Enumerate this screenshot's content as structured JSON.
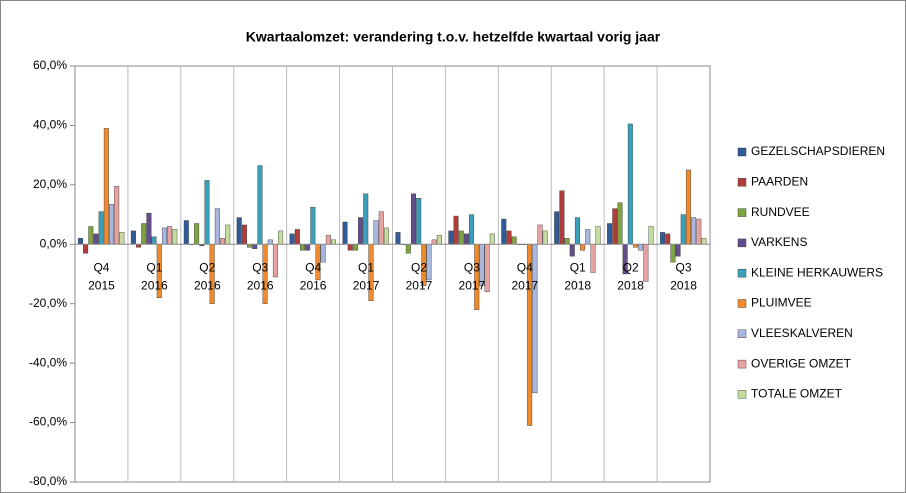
{
  "chart_data": {
    "type": "bar",
    "title": "Kwartaalomzet: verandering t.o.v. hetzelfde kwartaal vorig jaar",
    "categories": [
      [
        "Q4",
        "2015"
      ],
      [
        "Q1",
        "2016"
      ],
      [
        "Q2",
        "2016"
      ],
      [
        "Q3",
        "2016"
      ],
      [
        "Q4",
        "2016"
      ],
      [
        "Q1",
        "2017"
      ],
      [
        "Q2",
        "2017"
      ],
      [
        "Q3",
        "2017"
      ],
      [
        "Q4",
        "2017"
      ],
      [
        "Q1",
        "2018"
      ],
      [
        "Q2",
        "2018"
      ],
      [
        "Q3",
        "2018"
      ]
    ],
    "series": [
      {
        "name": "GEZELSCHAPSDIEREN",
        "color": "#2f5b96",
        "values": [
          2,
          4.5,
          8,
          9,
          3.5,
          7.5,
          4,
          4.5,
          8.5,
          11,
          7,
          4
        ]
      },
      {
        "name": "PAARDEN",
        "color": "#b23c3a",
        "values": [
          -3,
          -1,
          0,
          6.5,
          5,
          -2,
          0,
          9.5,
          4.5,
          18,
          12,
          3.5
        ]
      },
      {
        "name": "RUNDVEE",
        "color": "#7ea342",
        "values": [
          6,
          7,
          7,
          -1,
          -2,
          -2,
          -3,
          4.5,
          2.5,
          2,
          14,
          -6
        ]
      },
      {
        "name": "VARKENS",
        "color": "#634d8a",
        "values": [
          3.5,
          10.5,
          -0.5,
          -1.5,
          -2,
          9,
          17,
          3.5,
          0,
          -4,
          -10,
          -4
        ]
      },
      {
        "name": "KLEINE HERKAUWERS",
        "color": "#3aa0ba",
        "values": [
          11,
          2.5,
          21.5,
          26.5,
          12.5,
          17,
          15.5,
          10,
          0,
          9,
          40.5,
          10
        ]
      },
      {
        "name": "PLUIMVEE",
        "color": "#f08a2c",
        "values": [
          39,
          -18,
          -20,
          -20,
          -12,
          -19,
          -14,
          -22,
          -61,
          -2,
          -1,
          25
        ]
      },
      {
        "name": "VLEESKALVEREN",
        "color": "#a9b7de",
        "values": [
          13.5,
          5.5,
          12,
          1.5,
          -6,
          8,
          -12,
          -14,
          -50,
          5,
          -2,
          9
        ]
      },
      {
        "name": "OVERIGE OMZET",
        "color": "#e8a2a1",
        "values": [
          19.5,
          6,
          2,
          -11,
          3,
          11,
          1.5,
          -16,
          6.5,
          -9.5,
          -12.5,
          8.5
        ]
      },
      {
        "name": "TOTALE OMZET",
        "color": "#c5dc9f",
        "values": [
          4,
          5,
          6.5,
          4.5,
          1.5,
          5.5,
          3,
          3.5,
          4.5,
          6,
          6,
          2
        ]
      }
    ],
    "ylim": [
      -80,
      60
    ],
    "yticks": [
      {
        "value": -80,
        "label": "-80,0%"
      },
      {
        "value": -60,
        "label": "-60,0%"
      },
      {
        "value": -40,
        "label": "-40,0%"
      },
      {
        "value": -20,
        "label": "-20,0%"
      },
      {
        "value": 0,
        "label": "0,0%"
      },
      {
        "value": 20,
        "label": "20,0%"
      },
      {
        "value": 40,
        "label": "40,0%"
      },
      {
        "value": 60,
        "label": "60,0%"
      }
    ],
    "grid": true,
    "legend": "right"
  }
}
